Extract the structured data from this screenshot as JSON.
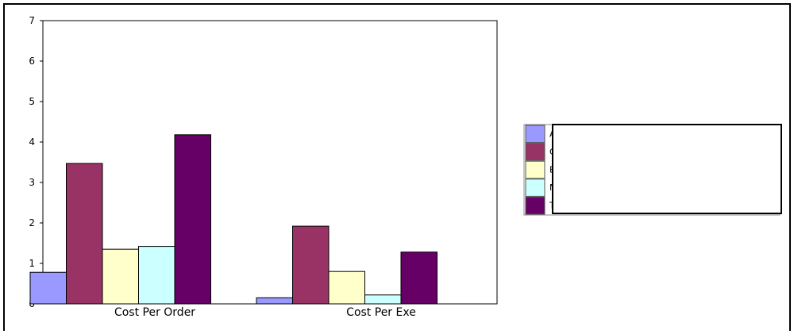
{
  "chart_data": {
    "type": "bar",
    "categories": [
      "Cost Per Order",
      "Cost Per Exe"
    ],
    "series": [
      {
        "values": [
          0.78,
          0.15
        ],
        "color": "#9999ff"
      },
      {
        "values": [
          3.47,
          1.92
        ],
        "color": "#993366"
      },
      {
        "values": [
          1.35,
          0.8
        ],
        "color": "#ffffcc"
      },
      {
        "values": [
          1.42,
          0.22
        ],
        "color": "#ccffff"
      },
      {
        "values": [
          4.18,
          1.28
        ],
        "color": "#660066"
      }
    ],
    "yticks": [
      "0",
      "1",
      "2",
      "3",
      "4",
      "5",
      "6",
      "7"
    ],
    "ylim": [
      0,
      7
    ],
    "legend": {
      "placement": "right",
      "visible_fragments": [
        "A",
        "C",
        "B",
        "M",
        "T"
      ]
    }
  }
}
